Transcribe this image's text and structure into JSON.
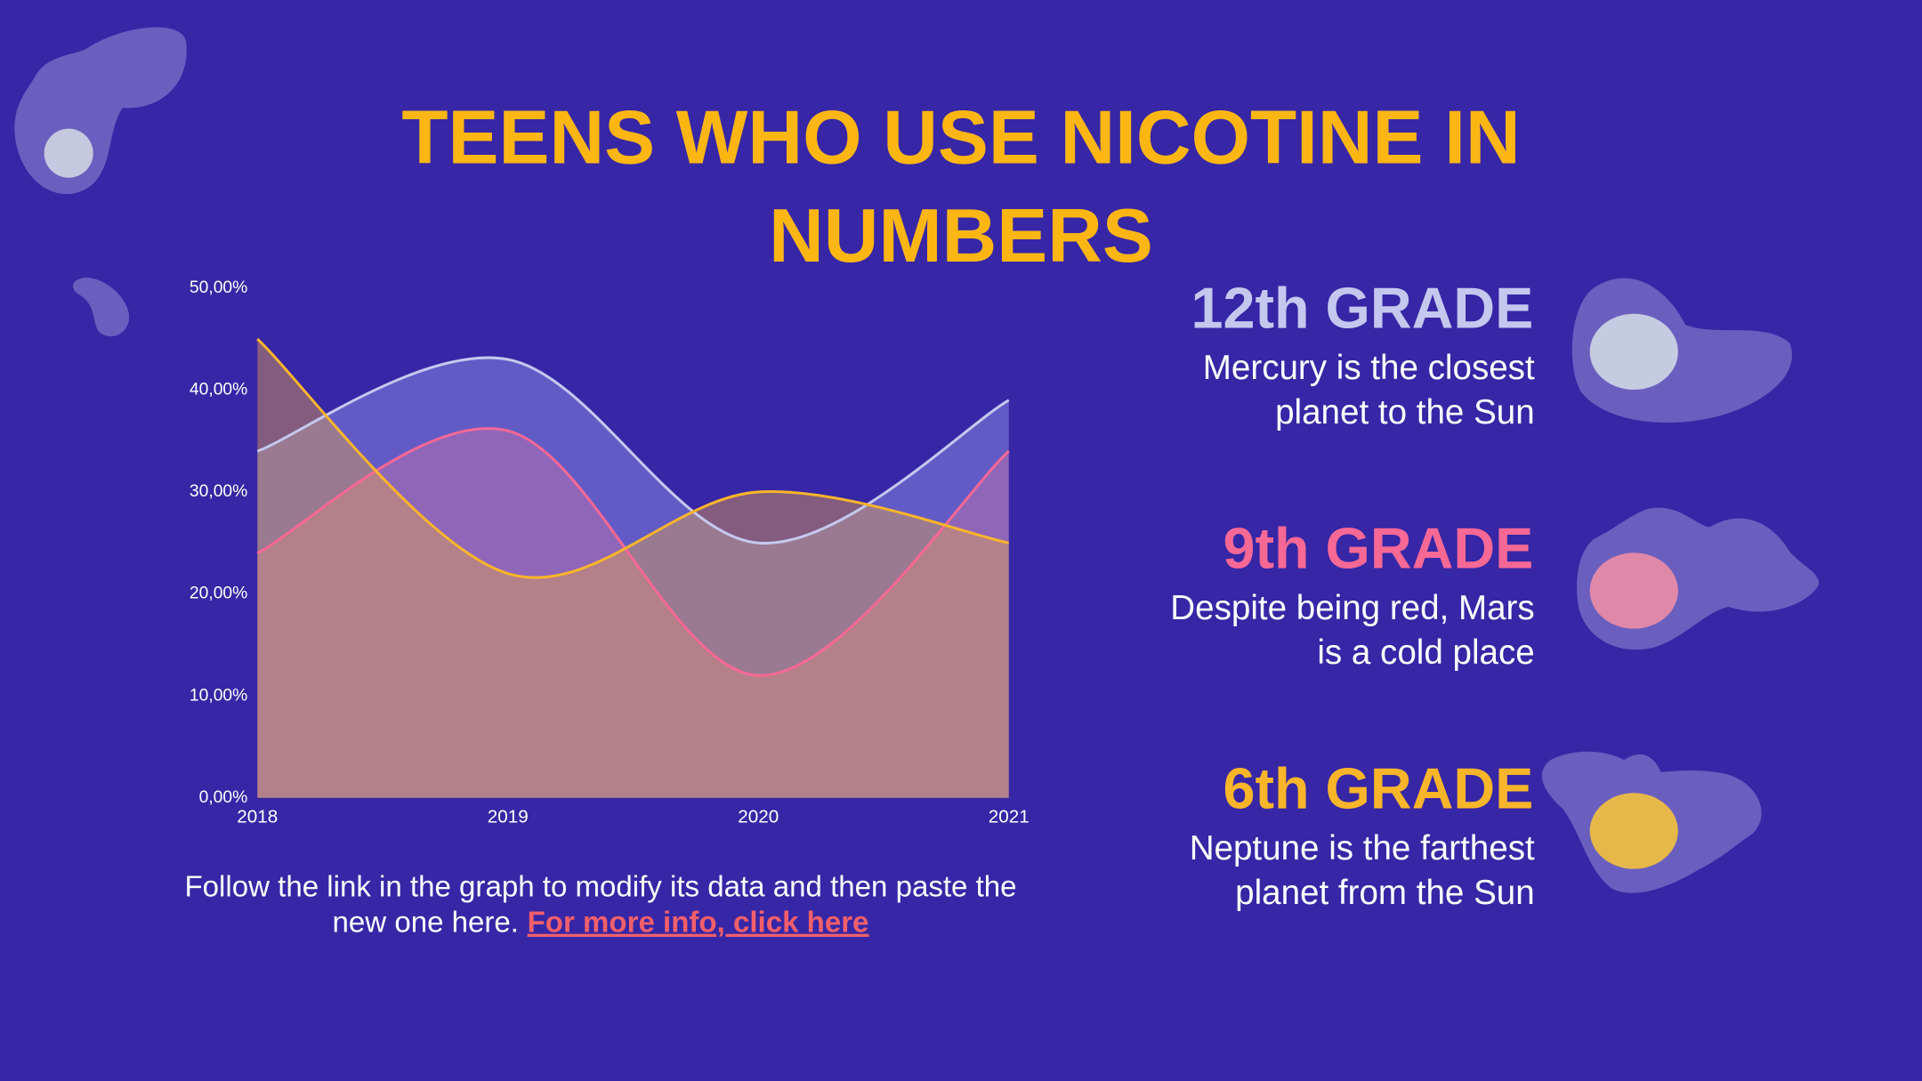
{
  "title": [
    "TEENS WHO USE NICOTINE IN",
    "NUMBERS"
  ],
  "chart_data": {
    "type": "area",
    "x": [
      "2018",
      "2019",
      "2020",
      "2021"
    ],
    "series": [
      {
        "color": "#c5c8ee",
        "values": [
          34,
          43,
          25,
          39
        ]
      },
      {
        "color": "#f76895",
        "values": [
          24,
          36,
          12,
          34
        ]
      },
      {
        "color": "#f9b52a",
        "values": [
          45,
          22,
          30,
          25
        ]
      }
    ],
    "ylim": [
      0,
      50
    ],
    "yticks": [
      {
        "value": 0,
        "label": "0,00%"
      },
      {
        "value": 10,
        "label": "10,00%"
      },
      {
        "value": 20,
        "label": "20,00%"
      },
      {
        "value": 30,
        "label": "30,00%"
      },
      {
        "value": 40,
        "label": "40,00%"
      },
      {
        "value": 50,
        "label": "50,00%"
      }
    ]
  },
  "cards": [
    {
      "heading": "12th GRADE",
      "lines": [
        "Mercury is the closest",
        "planet to the Sun"
      ]
    },
    {
      "heading": "9th GRADE",
      "lines": [
        "Despite being red, Mars",
        "is a cold place"
      ]
    },
    {
      "heading": "6th GRADE",
      "lines": [
        "Neptune is the farthest",
        "planet from the Sun"
      ]
    }
  ],
  "footer": {
    "lines": [
      "Follow the link in the graph to modify its data and then paste the",
      "new one here."
    ],
    "link": "For more info, click here"
  }
}
